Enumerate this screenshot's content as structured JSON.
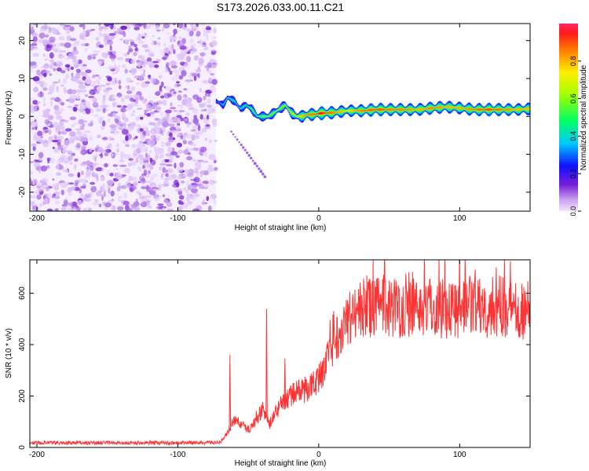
{
  "title": "S173.2026.033.00.11.C21",
  "chart_data": [
    {
      "type": "heatmap",
      "name": "spectrogram",
      "xlabel": "Height of straight line (km)",
      "ylabel": "Frequency (Hz)",
      "xlim": [
        -205,
        150
      ],
      "ylim": [
        -25,
        24.5
      ],
      "xticks": [
        -200,
        -100,
        0,
        100
      ],
      "yticks": [
        -20,
        -10,
        0,
        10,
        20
      ],
      "colorbar": {
        "label": "Normalized spectral amplitude",
        "range": [
          0.0,
          1.0
        ],
        "ticks": [
          0.0,
          0.2,
          0.4,
          0.6,
          0.8
        ]
      },
      "noise_region_x": [
        -205,
        -73
      ],
      "ridge": {
        "x": [
          -73,
          -68,
          -65,
          -60,
          -56,
          -52,
          -48,
          -44,
          -40,
          -36,
          -32,
          -28,
          -24,
          -20,
          -16,
          -12,
          -8,
          -4,
          0,
          10,
          20,
          30,
          40,
          50,
          60,
          70,
          80,
          90,
          100,
          110,
          120,
          130,
          140,
          150
        ],
        "freq_hz": [
          4,
          3,
          5,
          4,
          2,
          3,
          2,
          0,
          0,
          0,
          1,
          2,
          3,
          1,
          0,
          0,
          0.5,
          0.5,
          0.8,
          1,
          1.5,
          1.5,
          1.8,
          1.8,
          1.8,
          1.8,
          2.2,
          2.5,
          2.2,
          1.8,
          1.8,
          1.8,
          1.8,
          2
        ],
        "amplitude": [
          0.3,
          0.35,
          0.45,
          0.4,
          0.4,
          0.45,
          0.5,
          0.5,
          0.55,
          0.6,
          0.55,
          0.6,
          0.6,
          0.65,
          0.7,
          0.8,
          0.85,
          0.85,
          0.95,
          0.85,
          0.75,
          0.85,
          0.9,
          0.85,
          0.85,
          0.8,
          0.85,
          0.8,
          0.8,
          0.85,
          0.9,
          0.85,
          0.8,
          0.8
        ]
      }
    },
    {
      "type": "line",
      "name": "snr",
      "xlabel": "Height of straight line (km)",
      "ylabel": "SNR (10 * v/v)",
      "xlim": [
        -205,
        150
      ],
      "ylim": [
        0,
        730
      ],
      "xticks": [
        -200,
        -100,
        0,
        100
      ],
      "yticks": [
        0,
        200,
        400,
        600
      ],
      "color": "#ff3333",
      "trend": {
        "x": [
          -205,
          -150,
          -100,
          -70,
          -64,
          -60,
          -55,
          -50,
          -45,
          -40,
          -35,
          -30,
          -25,
          -20,
          -15,
          -10,
          -5,
          0,
          5,
          10,
          15,
          20,
          25,
          30,
          40,
          50,
          60,
          70,
          80,
          90,
          100,
          110,
          120,
          130,
          140,
          150
        ],
        "y": [
          18,
          18,
          18,
          20,
          60,
          110,
          90,
          70,
          100,
          150,
          90,
          140,
          180,
          200,
          220,
          220,
          240,
          270,
          320,
          400,
          460,
          500,
          520,
          540,
          545,
          550,
          540,
          545,
          550,
          540,
          545,
          550,
          545,
          550,
          545,
          530
        ]
      },
      "spikes": [
        {
          "x": -63,
          "y": 360
        },
        {
          "x": -37,
          "y": 540
        },
        {
          "x": -24,
          "y": 345
        },
        {
          "x": 46,
          "y": 672
        },
        {
          "x": 64,
          "y": 682
        },
        {
          "x": 88,
          "y": 655
        },
        {
          "x": 126,
          "y": 700
        },
        {
          "x": 136,
          "y": 725
        }
      ]
    }
  ]
}
